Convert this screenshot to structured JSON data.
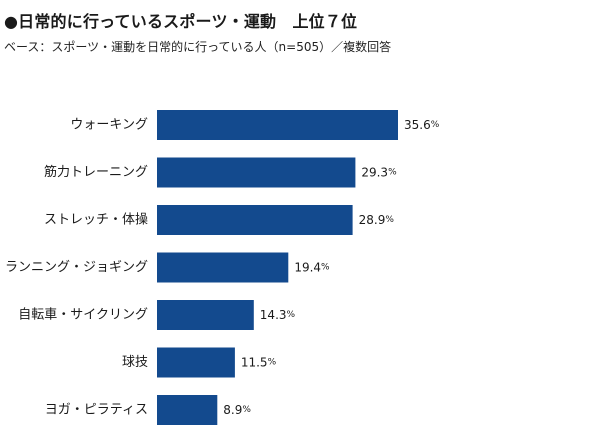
{
  "title": "●日常的に行っているスポーツ・運動　上位７位",
  "subtitle": "ベース：スポーツ・運動を日常的に行っている人（n=505）／複数回答",
  "colors": {
    "bar": "#134a8e"
  },
  "chart_data": {
    "type": "bar",
    "orientation": "horizontal",
    "categories": [
      "ウォーキング",
      "筋力トレーニング",
      "ストレッチ・体操",
      "ランニング・ジョギング",
      "自転車・サイクリング",
      "球技",
      "ヨガ・ピラティス"
    ],
    "values": [
      35.6,
      29.3,
      28.9,
      19.4,
      14.3,
      11.5,
      8.9
    ],
    "value_suffix": "%",
    "xlim": [
      0,
      35.6
    ],
    "grid": false,
    "legend": "none"
  }
}
